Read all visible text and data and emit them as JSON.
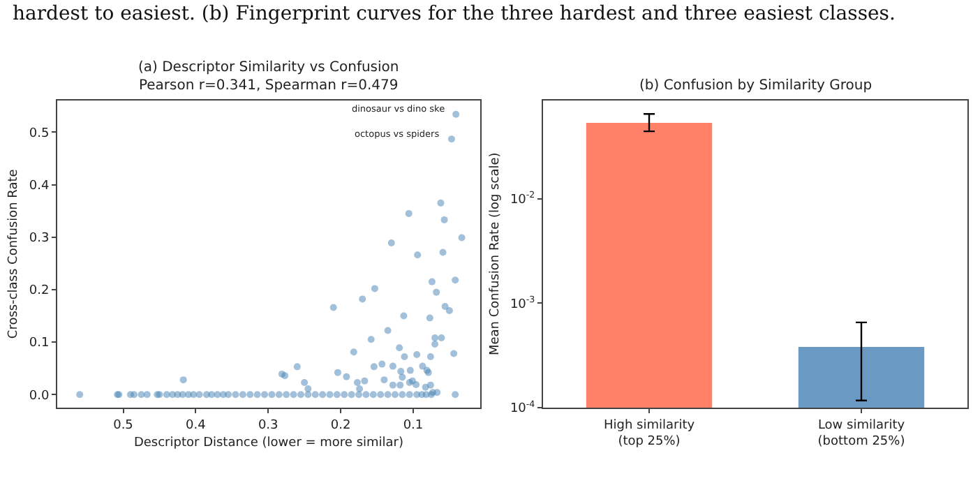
{
  "chart_data": [
    {
      "type": "scatter",
      "title": "(a) Descriptor Similarity vs Confusion\nPearson r=0.341, Spearman r=0.479",
      "xlabel": "Descriptor Distance (lower = more similar)",
      "ylabel": "Cross-class Confusion Rate",
      "annotations": [
        "hardest to easiest. (b) Fingerprint curves for the three hardest and three easiest classes.",
        {
          "text": "dinosaur vs dino ske",
          "x": 0.041,
          "y": 0.534
        },
        {
          "text": "octopus vs spiders",
          "x": 0.047,
          "y": 0.487
        }
      ],
      "color": "#4682b4",
      "marker": "circle",
      "xlim": [
        0.591,
        0.0075
      ],
      "ylim": [
        -0.025,
        0.561
      ],
      "xticks": [
        0.5,
        0.4,
        0.3,
        0.2,
        0.1
      ],
      "yticks": [
        {
          "value": 0,
          "label": "0.0"
        },
        0.1,
        0.2,
        0.3,
        0.4,
        0.5
      ],
      "x": [
        0.041,
        0.047,
        0.106,
        0.062,
        0.057,
        0.033,
        0.13,
        0.094,
        0.059,
        0.042,
        0.074,
        0.068,
        0.153,
        0.17,
        0.21,
        0.056,
        0.05,
        0.113,
        0.077,
        0.135,
        0.158,
        0.07,
        0.061,
        0.07,
        0.119,
        0.182,
        0.044,
        0.095,
        0.112,
        0.076,
        0.26,
        0.154,
        0.143,
        0.128,
        0.087,
        0.204,
        0.281,
        0.277,
        0.417,
        0.192,
        0.104,
        0.117,
        0.081,
        0.079,
        0.25,
        0.177,
        0.167,
        0.14,
        0.115,
        0.101,
        0.096,
        0.128,
        0.118,
        0.076,
        0.083,
        0.105,
        0.245,
        0.174,
        0.067,
        0.073,
        0.042,
        0.56,
        0.508,
        0.506,
        0.49,
        0.485,
        0.475,
        0.467,
        0.453,
        0.45,
        0.44,
        0.432,
        0.425,
        0.418,
        0.41,
        0.403,
        0.395,
        0.385,
        0.378,
        0.37,
        0.362,
        0.355,
        0.345,
        0.335,
        0.325,
        0.315,
        0.305,
        0.295,
        0.285,
        0.275,
        0.265,
        0.255,
        0.245,
        0.235,
        0.225,
        0.215,
        0.205,
        0.195,
        0.185,
        0.175,
        0.165,
        0.155,
        0.145,
        0.135,
        0.125,
        0.115,
        0.105,
        0.095,
        0.088,
        0.082,
        0.075
      ],
      "values": [
        0.534,
        0.487,
        0.345,
        0.365,
        0.333,
        0.299,
        0.289,
        0.266,
        0.271,
        0.218,
        0.215,
        0.195,
        0.202,
        0.182,
        0.166,
        0.168,
        0.16,
        0.15,
        0.146,
        0.122,
        0.105,
        0.108,
        0.108,
        0.096,
        0.089,
        0.081,
        0.078,
        0.076,
        0.072,
        0.072,
        0.053,
        0.053,
        0.058,
        0.054,
        0.054,
        0.042,
        0.039,
        0.036,
        0.028,
        0.034,
        0.046,
        0.044,
        0.046,
        0.042,
        0.023,
        0.023,
        0.026,
        0.028,
        0.033,
        0.026,
        0.019,
        0.018,
        0.018,
        0.018,
        0.014,
        0.023,
        0.011,
        0.011,
        0.004,
        0.004,
        0.0,
        0.0,
        0.0,
        0.0,
        0.0,
        0.0,
        0.0,
        0.0,
        0.0,
        0.0,
        0.0,
        0.0,
        0.0,
        0.0,
        0.0,
        0.0,
        0.0,
        0.0,
        0.0,
        0.0,
        0.0,
        0.0,
        0.0,
        0.0,
        0.0,
        0.0,
        0.0,
        0.0,
        0.0,
        0.0,
        0.0,
        0.0,
        0.0,
        0.0,
        0.0,
        0.0,
        0.0,
        0.0,
        0.0,
        0.0,
        0.0,
        0.0,
        0.0,
        0.0,
        0.0,
        0.0,
        0.0,
        0.0,
        0.0,
        0.0,
        0.0
      ]
    },
    {
      "type": "bar",
      "title": "(b) Confusion by Similarity Group",
      "ylabel": "Mean Confusion Rate (log scale)",
      "log": true,
      "categories": [
        "High similarity\n(top 25%)",
        "Low similarity\n(bottom 25%)"
      ],
      "values": [
        0.054,
        0.000387
      ],
      "colors": [
        "#fe8168",
        "#6a9ac4"
      ],
      "errors": [
        [
          0.0442,
          0.0647
        ],
        [
          0.000117,
          0.000655
        ]
      ],
      "ylim": [
        0.0001,
        0.0877
      ],
      "yticks": [
        {
          "value": 0.0001,
          "label": "10$^{-4}$"
        },
        {
          "value": 0.001,
          "label": "10$^{-3}$"
        },
        {
          "value": 0.01,
          "label": "10$^{-2}$"
        }
      ]
    }
  ]
}
